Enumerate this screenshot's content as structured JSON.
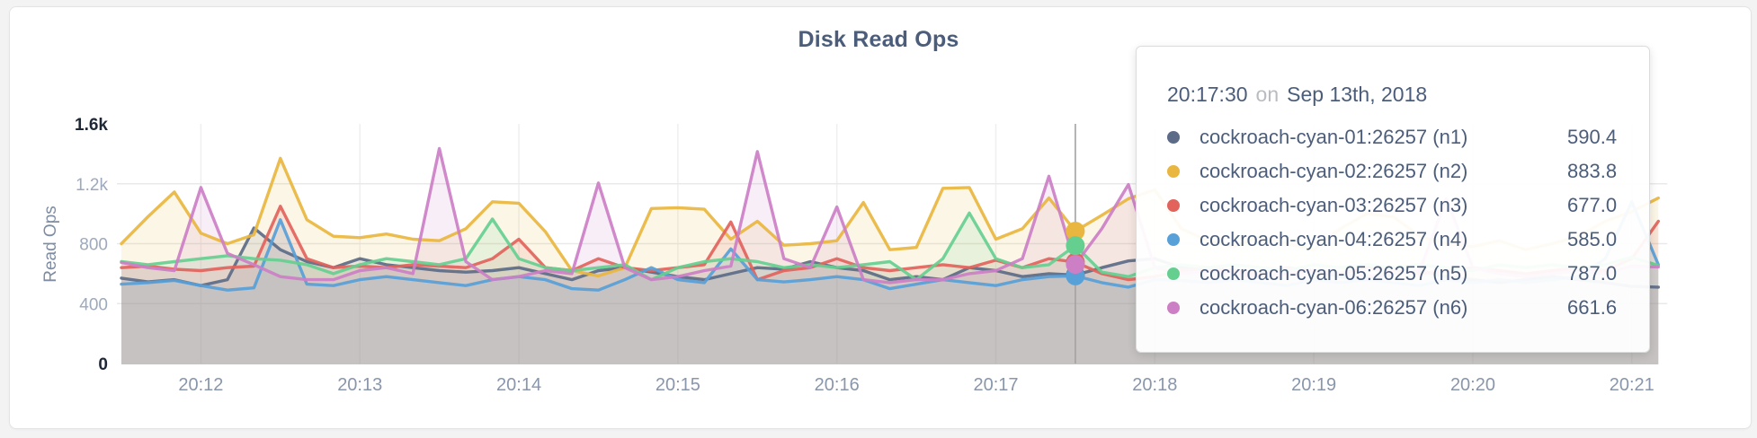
{
  "chart_data": {
    "type": "line",
    "title": "Disk Read Ops",
    "ylabel": "Read Ops",
    "ylim": [
      0,
      1600
    ],
    "grid": true,
    "legend_position": "tooltip-only",
    "y_tick_values": [
      0,
      400,
      800,
      1200,
      1600
    ],
    "y_tick_labels": [
      "0",
      "400",
      "800",
      "1.2k",
      "1.6k"
    ],
    "x_tick_labels": [
      "20:12",
      "20:13",
      "20:14",
      "20:15",
      "20:16",
      "20:17",
      "20:18",
      "20:19",
      "20:20",
      "20:21"
    ],
    "x_tick_indices": [
      3,
      9,
      15,
      21,
      27,
      33,
      39,
      45,
      51,
      57
    ],
    "x_start_time": "20:11:30",
    "x_interval_seconds": 10,
    "series": [
      {
        "name": "cockroach-cyan-01:26257 (n1)",
        "node": "n1",
        "color": "#5c6b87",
        "values": [
          570,
          545,
          560,
          520,
          560,
          905,
          760,
          680,
          640,
          700,
          660,
          640,
          620,
          610,
          620,
          640,
          600,
          560,
          620,
          640,
          610,
          580,
          560,
          600,
          640,
          630,
          680,
          640,
          620,
          560,
          580,
          560,
          640,
          620,
          580,
          600,
          590.4,
          640,
          685,
          700,
          640,
          620,
          600,
          580,
          600,
          620,
          580,
          560,
          600,
          620,
          580,
          560,
          540,
          560,
          580,
          560,
          540,
          515,
          510
        ]
      },
      {
        "name": "cockroach-cyan-02:26257 (n2)",
        "node": "n2",
        "color": "#e9b63f",
        "values": [
          800,
          980,
          1145,
          870,
          800,
          860,
          1370,
          960,
          850,
          840,
          865,
          830,
          820,
          900,
          1080,
          1070,
          880,
          620,
          585,
          640,
          1035,
          1040,
          1030,
          830,
          950,
          790,
          800,
          820,
          1075,
          760,
          775,
          1170,
          1175,
          830,
          900,
          1105,
          883.8,
          990,
          1100,
          1160,
          900,
          820,
          780,
          850,
          800,
          760,
          900,
          1000,
          980,
          850,
          800,
          780,
          820,
          760,
          800,
          850,
          950,
          1015,
          1105
        ]
      },
      {
        "name": "cockroach-cyan-03:26257 (n3)",
        "node": "n3",
        "color": "#e2635c",
        "values": [
          640,
          650,
          630,
          620,
          640,
          650,
          1050,
          700,
          640,
          650,
          640,
          660,
          650,
          640,
          700,
          830,
          640,
          620,
          700,
          640,
          620,
          640,
          660,
          945,
          560,
          620,
          640,
          700,
          640,
          620,
          640,
          660,
          640,
          690,
          640,
          700,
          677,
          600,
          560,
          580,
          620,
          640,
          620,
          600,
          640,
          620,
          600,
          640,
          620,
          600,
          620,
          640,
          620,
          600,
          620,
          640,
          620,
          700,
          950
        ]
      },
      {
        "name": "cockroach-cyan-04:26257 (n4)",
        "node": "n4",
        "color": "#58a0d8",
        "values": [
          530,
          540,
          555,
          520,
          490,
          505,
          960,
          530,
          520,
          560,
          580,
          560,
          540,
          520,
          560,
          580,
          560,
          500,
          490,
          560,
          640,
          560,
          540,
          765,
          560,
          545,
          560,
          580,
          560,
          500,
          530,
          560,
          540,
          520,
          560,
          580,
          585,
          540,
          510,
          560,
          555,
          540,
          560,
          540,
          520,
          560,
          540,
          560,
          540,
          520,
          560,
          540,
          560,
          540,
          560,
          580,
          700,
          1080,
          660
        ]
      },
      {
        "name": "cockroach-cyan-05:26257 (n5)",
        "node": "n5",
        "color": "#65cf90",
        "values": [
          680,
          660,
          680,
          700,
          720,
          700,
          690,
          660,
          600,
          660,
          700,
          680,
          660,
          700,
          965,
          700,
          640,
          620,
          640,
          660,
          560,
          640,
          680,
          700,
          680,
          640,
          660,
          640,
          660,
          680,
          560,
          700,
          1005,
          700,
          640,
          660,
          787,
          610,
          580,
          640,
          660,
          640,
          660,
          640,
          620,
          660,
          640,
          660,
          640,
          660,
          640,
          620,
          660,
          640,
          660,
          640,
          660,
          710,
          655
        ]
      },
      {
        "name": "cockroach-cyan-06:26257 (n6)",
        "node": "n6",
        "color": "#cc7fc5",
        "values": [
          675,
          640,
          620,
          1175,
          735,
          660,
          580,
          560,
          560,
          620,
          640,
          600,
          1435,
          680,
          560,
          580,
          620,
          600,
          1205,
          640,
          560,
          580,
          620,
          650,
          1415,
          700,
          640,
          1045,
          560,
          540,
          560,
          560,
          600,
          620,
          700,
          1250,
          661.6,
          900,
          1195,
          640,
          600,
          620,
          600,
          580,
          600,
          620,
          600,
          580,
          600,
          620,
          1100,
          640,
          600,
          580,
          600,
          620,
          600,
          650,
          645
        ]
      }
    ],
    "hover": {
      "index": 36,
      "time": "20:17:30"
    }
  },
  "tooltip": {
    "time": "20:17:30",
    "conjunction": "on",
    "date": "Sep 13th, 2018",
    "rows": [
      {
        "label": "cockroach-cyan-01:26257 (n1)",
        "value": "590.4",
        "color": "#5c6b87"
      },
      {
        "label": "cockroach-cyan-02:26257 (n2)",
        "value": "883.8",
        "color": "#e9b63f"
      },
      {
        "label": "cockroach-cyan-03:26257 (n3)",
        "value": "677.0",
        "color": "#e2635c"
      },
      {
        "label": "cockroach-cyan-04:26257 (n4)",
        "value": "585.0",
        "color": "#58a0d8"
      },
      {
        "label": "cockroach-cyan-05:26257 (n5)",
        "value": "787.0",
        "color": "#65cf90"
      },
      {
        "label": "cockroach-cyan-06:26257 (n6)",
        "value": "661.6",
        "color": "#cc7fc5"
      }
    ]
  },
  "colors": {
    "grid_h": "#e9e9e9",
    "grid_v": "#f0eff0",
    "crosshair": "#a2a2a2",
    "title": "#4b5d7b",
    "tick_muted": "#9da9bc",
    "tick_emph": "#1e2736"
  }
}
